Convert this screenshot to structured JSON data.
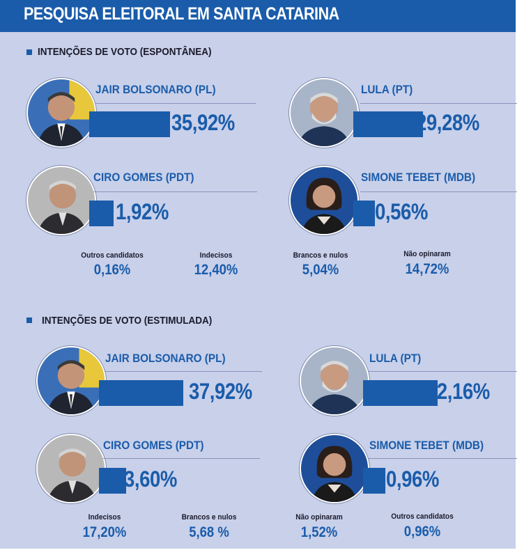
{
  "header": {
    "title": "PESQUISA ELEITORAL EM SANTA CATARINA"
  },
  "chart_data": [
    {
      "type": "bar",
      "title": "INTENÇÕES DE VOTO   (ESPONTÂNEA)",
      "candidates": [
        {
          "name": "JAIR BOLSONARO (PL)",
          "value": 35.92,
          "label": "35,92%"
        },
        {
          "name": "LULA (PT)",
          "value": 29.28,
          "label": "29,28%"
        },
        {
          "name": "CIRO GOMES (PDT)",
          "value": 1.92,
          "label": "1,92%"
        },
        {
          "name": "SIMONE TEBET (MDB)",
          "value": 0.56,
          "label": "0,56%"
        }
      ],
      "others": [
        {
          "label": "Outros candidatos",
          "value": "0,16%"
        },
        {
          "label": "Indecisos",
          "value": "12,40%"
        },
        {
          "label": "Brancos e nulos",
          "value": "5,04%"
        },
        {
          "label": "Não opinaram",
          "value": "14,72%"
        }
      ]
    },
    {
      "type": "bar",
      "title": "INTENÇÕES DE VOTO   (ESTIMULADA)",
      "candidates": [
        {
          "name": "JAIR BOLSONARO (PL)",
          "value": 37.92,
          "label": "37,92%"
        },
        {
          "name": "LULA (PT)",
          "value": 32.16,
          "label": "32,16%"
        },
        {
          "name": "CIRO GOMES (PDT)",
          "value": 3.6,
          "label": "3,60%"
        },
        {
          "name": "SIMONE TEBET (MDB)",
          "value": 0.96,
          "label": "0,96%"
        }
      ],
      "others": [
        {
          "label": "Indecisos",
          "value": "17,20%"
        },
        {
          "label": "Brancos e nulos",
          "value": "5,68 %"
        },
        {
          "label": "Não opinaram",
          "value": "1,52%"
        },
        {
          "label": "Outros candidatos",
          "value": "0,96%"
        }
      ]
    }
  ],
  "colors": {
    "accent": "#1a5caa",
    "panel": "#c8d0ea",
    "text": "#1a1a2a"
  }
}
